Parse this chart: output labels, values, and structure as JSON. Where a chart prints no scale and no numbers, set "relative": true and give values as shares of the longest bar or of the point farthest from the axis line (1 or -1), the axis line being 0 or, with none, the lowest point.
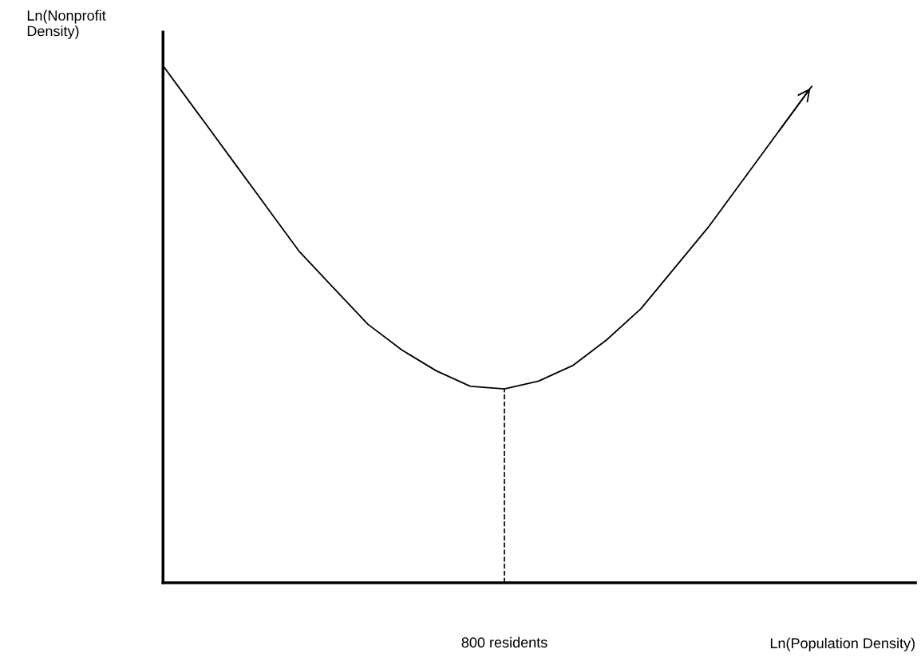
{
  "chart_data": {
    "type": "line",
    "relative": true,
    "xlabel": "Ln(Population Density)",
    "ylabel": "Ln(Nonprofit Density)",
    "categories": [
      null,
      null,
      null,
      null,
      null,
      null,
      null,
      null,
      null,
      null,
      null,
      null,
      null,
      null,
      null,
      null,
      null,
      null,
      null,
      null
    ],
    "series": [
      {
        "color": "#000000",
        "values": [
          1.0,
          0.91,
          0.82,
          0.73,
          0.64,
          0.57,
          0.5,
          0.45,
          0.41,
          0.38,
          0.375,
          0.39,
          0.42,
          0.47,
          0.53,
          0.61,
          0.69,
          0.78,
          0.87,
          0.96
        ]
      }
    ],
    "annotations": [
      "800 residents"
    ],
    "legend": false,
    "marker": "none",
    "line_style": "solid"
  }
}
